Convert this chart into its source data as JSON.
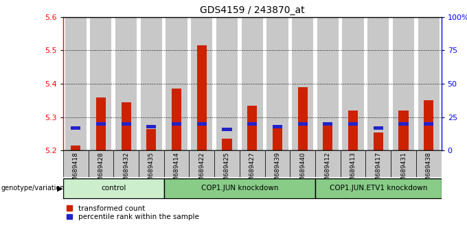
{
  "title": "GDS4159 / 243870_at",
  "samples": [
    "GSM689418",
    "GSM689428",
    "GSM689432",
    "GSM689435",
    "GSM689414",
    "GSM689422",
    "GSM689425",
    "GSM689427",
    "GSM689439",
    "GSM689440",
    "GSM689412",
    "GSM689413",
    "GSM689417",
    "GSM689431",
    "GSM689438"
  ],
  "transformed_count": [
    5.215,
    5.36,
    5.345,
    5.265,
    5.385,
    5.515,
    5.235,
    5.335,
    5.275,
    5.39,
    5.28,
    5.32,
    5.255,
    5.32,
    5.35
  ],
  "percentile_rank_values": [
    17,
    20,
    20,
    18,
    20,
    20,
    16,
    20,
    18,
    20,
    20,
    20,
    17,
    20,
    20
  ],
  "groups": [
    {
      "label": "control",
      "start": 0,
      "end": 4
    },
    {
      "label": "COP1.JUN knockdown",
      "start": 4,
      "end": 10
    },
    {
      "label": "COP1.JUN.ETV1 knockdown",
      "start": 10,
      "end": 15
    }
  ],
  "ymin": 5.2,
  "ymax": 5.6,
  "yticks": [
    5.2,
    5.3,
    5.4,
    5.5,
    5.6
  ],
  "right_yticks": [
    0,
    25,
    50,
    75,
    100
  ],
  "bar_color_red": "#cc2200",
  "bar_color_blue": "#2222cc",
  "group_bg_color_light": "#cceecc",
  "group_bg_color_dark": "#88cc88",
  "bar_bg": "#c8c8c8",
  "legend_label_red": "transformed count",
  "legend_label_blue": "percentile rank within the sample"
}
